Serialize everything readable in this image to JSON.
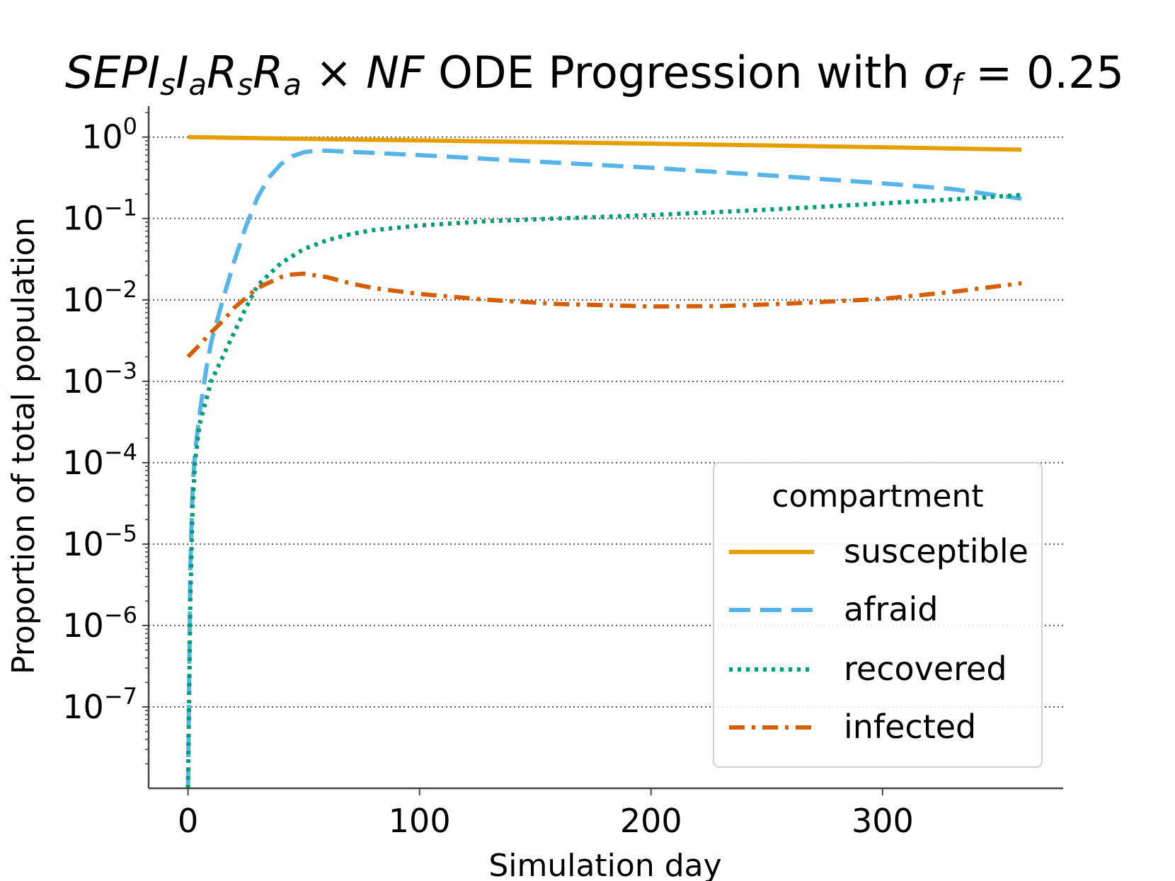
{
  "chart_data": {
    "type": "line",
    "title": {
      "s1": "SEPI",
      "s2": "s",
      "s3": "I",
      "s4": "a",
      "s5": "R",
      "s6": "s",
      "s7": "R",
      "s8": "a",
      "s9": " × ",
      "s10": "NF",
      "s11": " ODE Progression with ",
      "s12": "σ",
      "s13": "f",
      "s14": " = 0.25"
    },
    "xlabel": "Simulation day",
    "ylabel": "Proportion of total population",
    "xlim": [
      -17,
      378
    ],
    "ylim_log10": [
      -8.0,
      0.38
    ],
    "yscale": "log",
    "grid": "y-major-dotted",
    "x_ticks": [
      0,
      100,
      200,
      300
    ],
    "x_tick_labels": [
      "0",
      "100",
      "200",
      "300"
    ],
    "y_ticks": [
      0,
      -1,
      -2,
      -3,
      -4,
      -5,
      -6,
      -7
    ],
    "y_tick_labels": [
      {
        "base": "10",
        "exp": "0"
      },
      {
        "base": "10",
        "exp": "−1"
      },
      {
        "base": "10",
        "exp": "−2"
      },
      {
        "base": "10",
        "exp": "−3"
      },
      {
        "base": "10",
        "exp": "−4"
      },
      {
        "base": "10",
        "exp": "−5"
      },
      {
        "base": "10",
        "exp": "−6"
      },
      {
        "base": "10",
        "exp": "−7"
      }
    ],
    "legend": {
      "title": "compartment",
      "position": "lower-right",
      "entries": [
        "susceptible",
        "afraid",
        "recovered",
        "infected"
      ]
    },
    "series": [
      {
        "name": "susceptible",
        "color": "#E69F00",
        "dash": "solid",
        "points": [
          [
            0,
            1.0
          ],
          [
            50,
            0.95
          ],
          [
            100,
            0.91
          ],
          [
            150,
            0.87
          ],
          [
            200,
            0.83
          ],
          [
            250,
            0.79
          ],
          [
            300,
            0.75
          ],
          [
            360,
            0.7
          ]
        ]
      },
      {
        "name": "afraid",
        "color": "#56B4E9",
        "dash": "dashed",
        "points": [
          [
            0,
            1e-08
          ],
          [
            1,
            5e-06
          ],
          [
            2,
            5e-05
          ],
          [
            3,
            0.00013
          ],
          [
            5,
            0.0004
          ],
          [
            8,
            0.0015
          ],
          [
            10,
            0.003
          ],
          [
            15,
            0.01
          ],
          [
            20,
            0.03
          ],
          [
            25,
            0.08
          ],
          [
            30,
            0.18
          ],
          [
            35,
            0.32
          ],
          [
            40,
            0.46
          ],
          [
            45,
            0.58
          ],
          [
            50,
            0.65
          ],
          [
            55,
            0.68
          ],
          [
            60,
            0.68
          ],
          [
            70,
            0.66
          ],
          [
            100,
            0.6
          ],
          [
            150,
            0.5
          ],
          [
            200,
            0.42
          ],
          [
            250,
            0.34
          ],
          [
            300,
            0.27
          ],
          [
            330,
            0.23
          ],
          [
            360,
            0.175
          ]
        ]
      },
      {
        "name": "recovered",
        "color": "#009E73",
        "dash": "dotted",
        "points": [
          [
            0,
            1e-08
          ],
          [
            1,
            2e-06
          ],
          [
            2,
            3e-05
          ],
          [
            3,
            0.0001
          ],
          [
            5,
            0.0003
          ],
          [
            10,
            0.001
          ],
          [
            15,
            0.002
          ],
          [
            20,
            0.004
          ],
          [
            25,
            0.008
          ],
          [
            30,
            0.015
          ],
          [
            40,
            0.028
          ],
          [
            50,
            0.042
          ],
          [
            60,
            0.054
          ],
          [
            70,
            0.064
          ],
          [
            80,
            0.072
          ],
          [
            100,
            0.082
          ],
          [
            130,
            0.093
          ],
          [
            160,
            0.1
          ],
          [
            200,
            0.11
          ],
          [
            250,
            0.128
          ],
          [
            300,
            0.153
          ],
          [
            340,
            0.178
          ],
          [
            360,
            0.195
          ]
        ]
      },
      {
        "name": "infected",
        "color": "#D55E00",
        "dash": "dashdot",
        "points": [
          [
            0,
            0.002
          ],
          [
            5,
            0.0028
          ],
          [
            10,
            0.004
          ],
          [
            15,
            0.0055
          ],
          [
            20,
            0.008
          ],
          [
            30,
            0.014
          ],
          [
            40,
            0.019
          ],
          [
            45,
            0.0205
          ],
          [
            50,
            0.021
          ],
          [
            60,
            0.019
          ],
          [
            70,
            0.016
          ],
          [
            80,
            0.014
          ],
          [
            100,
            0.0118
          ],
          [
            130,
            0.01
          ],
          [
            160,
            0.0089
          ],
          [
            200,
            0.0083
          ],
          [
            230,
            0.0084
          ],
          [
            260,
            0.009
          ],
          [
            300,
            0.0103
          ],
          [
            330,
            0.0125
          ],
          [
            360,
            0.016
          ]
        ]
      }
    ]
  }
}
